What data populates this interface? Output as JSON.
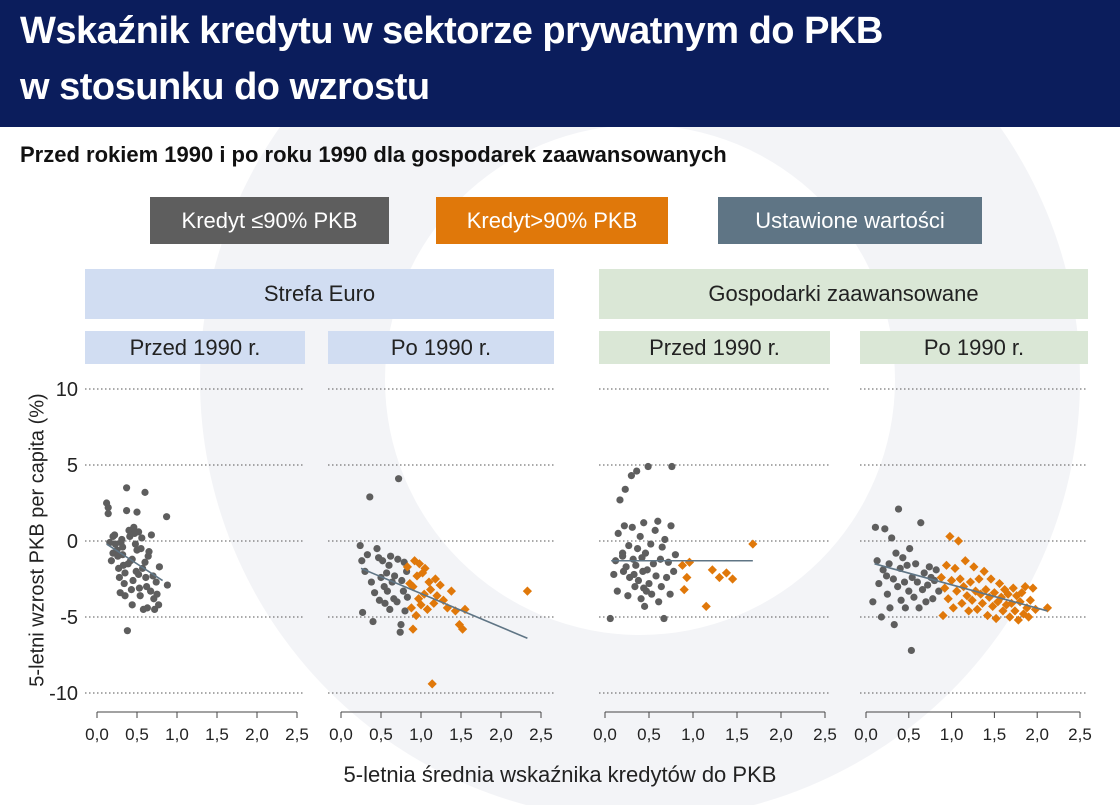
{
  "title_line1": "Wskaźnik kredytu w sektorze prywatnym do PKB",
  "title_line2": "w stosunku do wzrostu",
  "subtitle": "Przed rokiem 1990 i po roku 1990 dla gospodarek zaawansowanych",
  "legend": {
    "low": "Kredyt ≤90% PKB",
    "high": "Kredyt>90% PKB",
    "fit": "Ustawione wartości"
  },
  "groups": {
    "euro": "Strefa Euro",
    "advanced": "Gospodarki zaawansowane"
  },
  "panels": [
    "Przed 1990 r.",
    "Po 1990 r.",
    "Przed 1990 r.",
    "Po 1990 r."
  ],
  "colors": {
    "title_bg": "#0b1d5c",
    "low": "#5e5e5e",
    "high": "#e0780a",
    "fit": "#5f7585",
    "euro_header": "#d1ddf2",
    "advanced_header": "#dae7d6"
  },
  "chart_data": {
    "type": "scatter",
    "xlabel": "5-letnia średnia wskaźnika kredytów do PKB",
    "ylabel": "5-letni wzrost PKB per capita (%)",
    "xlim": [
      0,
      2.5
    ],
    "ylim": [
      -10,
      10
    ],
    "xticks": [
      "0,0",
      "0,5",
      "1,0",
      "1,5",
      "2,0",
      "2,5"
    ],
    "yticks": [
      "10",
      "5",
      "0",
      "-5",
      "-10"
    ],
    "grid": "horizontal dotted",
    "panels": [
      {
        "group": "Strefa Euro",
        "period": "Przed 1990 r.",
        "low": [
          [
            0.12,
            2.5
          ],
          [
            0.14,
            2.2
          ],
          [
            0.14,
            1.8
          ],
          [
            0.16,
            -0.1
          ],
          [
            0.18,
            -1.3
          ],
          [
            0.2,
            -0.8
          ],
          [
            0.22,
            0.4
          ],
          [
            0.23,
            -0.2
          ],
          [
            0.25,
            -0.6
          ],
          [
            0.27,
            -1.8
          ],
          [
            0.28,
            -2.4
          ],
          [
            0.29,
            -3.4
          ],
          [
            0.3,
            -0.1
          ],
          [
            0.31,
            0.1
          ],
          [
            0.32,
            -0.4
          ],
          [
            0.32,
            -0.9
          ],
          [
            0.34,
            -2.8
          ],
          [
            0.35,
            -3.6
          ],
          [
            0.35,
            -2.1
          ],
          [
            0.37,
            3.5
          ],
          [
            0.37,
            2.0
          ],
          [
            0.38,
            -5.9
          ],
          [
            0.39,
            -1.5
          ],
          [
            0.4,
            0.7
          ],
          [
            0.41,
            0.3
          ],
          [
            0.42,
            -1.3
          ],
          [
            0.43,
            -3.2
          ],
          [
            0.44,
            -4.2
          ],
          [
            0.45,
            -2.6
          ],
          [
            0.46,
            0.9
          ],
          [
            0.47,
            0.5
          ],
          [
            0.48,
            -0.2
          ],
          [
            0.49,
            -2.0
          ],
          [
            0.5,
            -0.6
          ],
          [
            0.5,
            1.9
          ],
          [
            0.52,
            0.6
          ],
          [
            0.53,
            -3.1
          ],
          [
            0.54,
            -3.6
          ],
          [
            0.55,
            -0.5
          ],
          [
            0.56,
            0.2
          ],
          [
            0.57,
            -1.8
          ],
          [
            0.58,
            -4.5
          ],
          [
            0.6,
            3.2
          ],
          [
            0.61,
            -2.4
          ],
          [
            0.62,
            -3.0
          ],
          [
            0.63,
            -4.4
          ],
          [
            0.64,
            -1.0
          ],
          [
            0.65,
            -0.7
          ],
          [
            0.67,
            -3.3
          ],
          [
            0.68,
            0.4
          ],
          [
            0.7,
            -2.3
          ],
          [
            0.71,
            -3.8
          ],
          [
            0.72,
            -4.5
          ],
          [
            0.74,
            -2.7
          ],
          [
            0.75,
            -3.5
          ],
          [
            0.77,
            -4.2
          ],
          [
            0.78,
            -1.7
          ],
          [
            0.87,
            1.6
          ],
          [
            0.88,
            -2.9
          ],
          [
            0.2,
            0.3
          ],
          [
            0.26,
            -1.0
          ],
          [
            0.33,
            -1.6
          ],
          [
            0.44,
            -1.2
          ],
          [
            0.52,
            -2.2
          ],
          [
            0.6,
            -1.4
          ]
        ],
        "high": [],
        "fit": [
          [
            0.12,
            -0.2
          ],
          [
            0.82,
            -2.6
          ]
        ]
      },
      {
        "group": "Strefa Euro",
        "period": "Po 1990 r.",
        "low": [
          [
            0.24,
            -0.3
          ],
          [
            0.26,
            -1.3
          ],
          [
            0.27,
            -4.7
          ],
          [
            0.3,
            -2.0
          ],
          [
            0.33,
            -0.9
          ],
          [
            0.36,
            2.9
          ],
          [
            0.38,
            -2.7
          ],
          [
            0.4,
            -5.3
          ],
          [
            0.42,
            -3.4
          ],
          [
            0.45,
            -0.5
          ],
          [
            0.47,
            -1.1
          ],
          [
            0.48,
            -3.9
          ],
          [
            0.5,
            -2.4
          ],
          [
            0.52,
            -1.3
          ],
          [
            0.54,
            -3.0
          ],
          [
            0.55,
            -4.1
          ],
          [
            0.57,
            -2.1
          ],
          [
            0.58,
            -3.3
          ],
          [
            0.6,
            -1.6
          ],
          [
            0.61,
            -4.5
          ],
          [
            0.62,
            -1.0
          ],
          [
            0.64,
            -2.7
          ],
          [
            0.66,
            -3.8
          ],
          [
            0.67,
            -2.3
          ],
          [
            0.7,
            -4.0
          ],
          [
            0.71,
            -1.2
          ],
          [
            0.72,
            4.1
          ],
          [
            0.74,
            -6.0
          ],
          [
            0.75,
            -5.5
          ],
          [
            0.76,
            -2.6
          ],
          [
            0.78,
            -3.3
          ],
          [
            0.79,
            -1.4
          ],
          [
            0.8,
            -4.6
          ],
          [
            0.82,
            -2.0
          ],
          [
            0.83,
            -3.7
          ]
        ],
        "high": [
          [
            0.83,
            -1.7
          ],
          [
            0.86,
            -2.8
          ],
          [
            0.88,
            -4.4
          ],
          [
            0.9,
            -5.8
          ],
          [
            0.9,
            -3.0
          ],
          [
            0.92,
            -1.3
          ],
          [
            0.94,
            -4.9
          ],
          [
            0.95,
            -2.3
          ],
          [
            0.97,
            -3.8
          ],
          [
            0.98,
            -1.5
          ],
          [
            1.0,
            -4.2
          ],
          [
            1.02,
            -2.1
          ],
          [
            1.04,
            -3.5
          ],
          [
            1.05,
            -1.8
          ],
          [
            1.08,
            -4.5
          ],
          [
            1.1,
            -2.7
          ],
          [
            1.12,
            -3.2
          ],
          [
            1.14,
            -9.4
          ],
          [
            1.16,
            -4.1
          ],
          [
            1.18,
            -2.5
          ],
          [
            1.2,
            -3.6
          ],
          [
            1.24,
            -2.9
          ],
          [
            1.28,
            -3.9
          ],
          [
            1.33,
            -4.4
          ],
          [
            1.38,
            -3.3
          ],
          [
            1.43,
            -4.6
          ],
          [
            1.48,
            -5.5
          ],
          [
            1.52,
            -5.8
          ],
          [
            1.55,
            -4.5
          ],
          [
            2.33,
            -3.3
          ]
        ],
        "fit": [
          [
            0.25,
            -1.8
          ],
          [
            2.33,
            -6.4
          ]
        ]
      },
      {
        "group": "Gospodarki zaawansowane",
        "period": "Przed 1990 r.",
        "low": [
          [
            0.06,
            -5.1
          ],
          [
            0.1,
            -2.2
          ],
          [
            0.12,
            -1.3
          ],
          [
            0.14,
            -3.3
          ],
          [
            0.15,
            0.5
          ],
          [
            0.17,
            2.7
          ],
          [
            0.2,
            -0.8
          ],
          [
            0.21,
            -2.0
          ],
          [
            0.22,
            1.0
          ],
          [
            0.23,
            3.4
          ],
          [
            0.24,
            -1.7
          ],
          [
            0.26,
            -3.6
          ],
          [
            0.27,
            -0.3
          ],
          [
            0.28,
            -2.4
          ],
          [
            0.3,
            4.3
          ],
          [
            0.31,
            0.9
          ],
          [
            0.32,
            -1.2
          ],
          [
            0.34,
            -3.0
          ],
          [
            0.35,
            -1.6
          ],
          [
            0.36,
            4.6
          ],
          [
            0.37,
            -0.5
          ],
          [
            0.38,
            -2.6
          ],
          [
            0.4,
            0.3
          ],
          [
            0.41,
            -3.8
          ],
          [
            0.42,
            -1.1
          ],
          [
            0.43,
            -2.0
          ],
          [
            0.44,
            1.2
          ],
          [
            0.45,
            -4.3
          ],
          [
            0.46,
            -0.8
          ],
          [
            0.47,
            -3.3
          ],
          [
            0.48,
            -1.9
          ],
          [
            0.49,
            4.9
          ],
          [
            0.5,
            -2.8
          ],
          [
            0.52,
            -0.2
          ],
          [
            0.53,
            -3.5
          ],
          [
            0.55,
            -1.5
          ],
          [
            0.57,
            0.7
          ],
          [
            0.58,
            -2.3
          ],
          [
            0.6,
            1.3
          ],
          [
            0.61,
            -4.0
          ],
          [
            0.63,
            -1.2
          ],
          [
            0.64,
            -3.0
          ],
          [
            0.65,
            -0.4
          ],
          [
            0.67,
            -5.1
          ],
          [
            0.68,
            0.1
          ],
          [
            0.7,
            -2.4
          ],
          [
            0.72,
            -1.4
          ],
          [
            0.74,
            -3.5
          ],
          [
            0.75,
            1.0
          ],
          [
            0.76,
            4.9
          ],
          [
            0.78,
            -2.0
          ],
          [
            0.8,
            -0.9
          ],
          [
            0.2,
            -1.0
          ],
          [
            0.33,
            -2.2
          ],
          [
            0.44,
            -3.1
          ]
        ],
        "high": [
          [
            0.88,
            -1.6
          ],
          [
            0.9,
            -3.2
          ],
          [
            0.93,
            -2.4
          ],
          [
            0.96,
            -1.4
          ],
          [
            1.15,
            -4.3
          ],
          [
            1.22,
            -1.9
          ],
          [
            1.3,
            -2.4
          ],
          [
            1.38,
            -2.1
          ],
          [
            1.45,
            -2.5
          ],
          [
            1.68,
            -0.2
          ]
        ],
        "fit": [
          [
            0.07,
            -1.3
          ],
          [
            1.68,
            -1.3
          ]
        ]
      },
      {
        "group": "Gospodarki zaawansowane",
        "period": "Po 1990 r.",
        "low": [
          [
            0.08,
            -4.0
          ],
          [
            0.11,
            0.9
          ],
          [
            0.13,
            -1.3
          ],
          [
            0.15,
            -2.8
          ],
          [
            0.18,
            -5.0
          ],
          [
            0.2,
            -1.9
          ],
          [
            0.22,
            0.8
          ],
          [
            0.24,
            -2.3
          ],
          [
            0.25,
            -3.5
          ],
          [
            0.27,
            -1.5
          ],
          [
            0.28,
            -4.4
          ],
          [
            0.3,
            0.2
          ],
          [
            0.32,
            -2.5
          ],
          [
            0.33,
            -5.5
          ],
          [
            0.35,
            -0.8
          ],
          [
            0.37,
            -3.0
          ],
          [
            0.38,
            2.1
          ],
          [
            0.4,
            -1.8
          ],
          [
            0.41,
            -3.9
          ],
          [
            0.43,
            -1.1
          ],
          [
            0.45,
            -2.7
          ],
          [
            0.46,
            -4.4
          ],
          [
            0.48,
            -1.6
          ],
          [
            0.5,
            -3.3
          ],
          [
            0.51,
            -0.5
          ],
          [
            0.53,
            -7.2
          ],
          [
            0.54,
            -2.4
          ],
          [
            0.56,
            -3.7
          ],
          [
            0.58,
            -1.5
          ],
          [
            0.6,
            -2.7
          ],
          [
            0.62,
            -4.4
          ],
          [
            0.64,
            1.2
          ],
          [
            0.66,
            -3.2
          ],
          [
            0.68,
            -2.1
          ],
          [
            0.7,
            -4.0
          ],
          [
            0.72,
            -2.9
          ],
          [
            0.74,
            -1.7
          ],
          [
            0.76,
            -2.4
          ],
          [
            0.78,
            -3.8
          ],
          [
            0.8,
            -2.6
          ],
          [
            0.82,
            -1.9
          ],
          [
            0.85,
            -3.3
          ]
        ],
        "high": [
          [
            0.88,
            -2.4
          ],
          [
            0.9,
            -4.9
          ],
          [
            0.92,
            -3.1
          ],
          [
            0.94,
            -1.6
          ],
          [
            0.96,
            -3.8
          ],
          [
            0.98,
            0.3
          ],
          [
            1.0,
            -2.6
          ],
          [
            1.02,
            -4.4
          ],
          [
            1.04,
            -1.8
          ],
          [
            1.06,
            -3.3
          ],
          [
            1.08,
            0.0
          ],
          [
            1.1,
            -2.5
          ],
          [
            1.12,
            -4.1
          ],
          [
            1.14,
            -3.0
          ],
          [
            1.16,
            -1.3
          ],
          [
            1.18,
            -3.6
          ],
          [
            1.2,
            -4.6
          ],
          [
            1.22,
            -2.7
          ],
          [
            1.24,
            -3.9
          ],
          [
            1.26,
            -1.7
          ],
          [
            1.28,
            -3.3
          ],
          [
            1.3,
            -4.5
          ],
          [
            1.32,
            -2.5
          ],
          [
            1.34,
            -3.5
          ],
          [
            1.36,
            -4.1
          ],
          [
            1.38,
            -2.0
          ],
          [
            1.4,
            -3.2
          ],
          [
            1.42,
            -4.9
          ],
          [
            1.44,
            -3.7
          ],
          [
            1.46,
            -2.5
          ],
          [
            1.48,
            -4.3
          ],
          [
            1.5,
            -3.4
          ],
          [
            1.52,
            -5.1
          ],
          [
            1.54,
            -4.0
          ],
          [
            1.56,
            -2.8
          ],
          [
            1.58,
            -3.7
          ],
          [
            1.6,
            -4.6
          ],
          [
            1.62,
            -3.2
          ],
          [
            1.64,
            -4.2
          ],
          [
            1.66,
            -3.5
          ],
          [
            1.68,
            -5.0
          ],
          [
            1.7,
            -4.1
          ],
          [
            1.72,
            -3.1
          ],
          [
            1.74,
            -4.6
          ],
          [
            1.76,
            -3.6
          ],
          [
            1.78,
            -5.2
          ],
          [
            1.8,
            -4.0
          ],
          [
            1.82,
            -3.4
          ],
          [
            1.84,
            -4.8
          ],
          [
            1.86,
            -3.0
          ],
          [
            1.88,
            -4.4
          ],
          [
            1.9,
            -5.0
          ],
          [
            1.92,
            -3.9
          ],
          [
            1.95,
            -3.1
          ],
          [
            1.98,
            -4.5
          ],
          [
            2.12,
            -4.4
          ]
        ],
        "fit": [
          [
            0.1,
            -1.5
          ],
          [
            2.12,
            -4.6
          ]
        ]
      }
    ]
  }
}
